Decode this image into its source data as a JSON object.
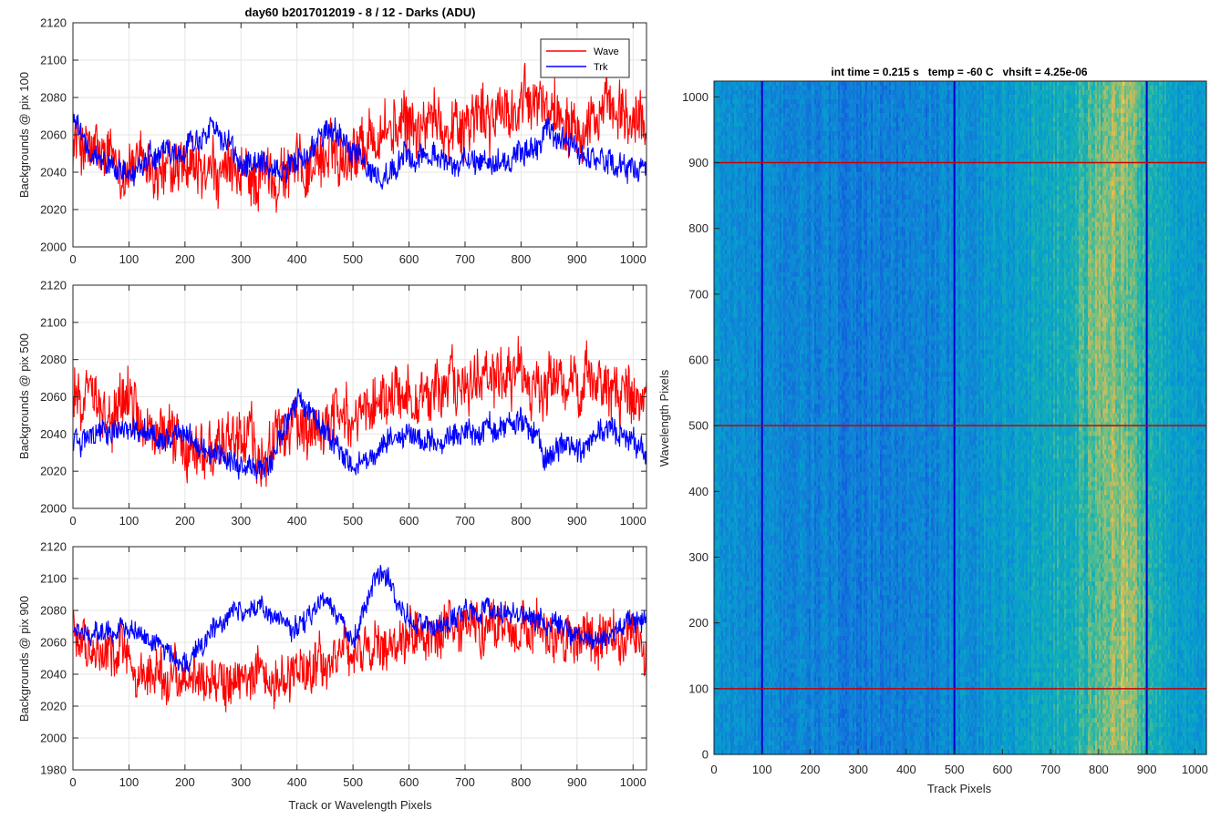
{
  "figure": {
    "title": "day60 b2017012019 - 8 / 12 - Darks (ADU)",
    "colors": {
      "wave": "#ff0000",
      "trk": "#0000ff",
      "grid": "#e6e6e6",
      "axis": "#262626"
    }
  },
  "chart_data": [
    {
      "type": "line",
      "title": "day60 b2017012019 - 8 / 12 - Darks (ADU)",
      "xlabel": "",
      "ylabel": "Backgrounds @ pix 100",
      "xlim": [
        0,
        1024
      ],
      "ylim": [
        2000,
        2120
      ],
      "xticks": [
        "0",
        "100",
        "200",
        "300",
        "400",
        "500",
        "600",
        "700",
        "800",
        "900",
        "1000"
      ],
      "yticks": [
        "2000",
        "2020",
        "2040",
        "2060",
        "2080",
        "2100",
        "2120"
      ],
      "grid": true,
      "legend": {
        "position": "top-right",
        "entries": [
          "Wave",
          "Trk"
        ]
      },
      "x": [
        0,
        50,
        100,
        150,
        200,
        250,
        300,
        350,
        400,
        450,
        500,
        550,
        600,
        650,
        700,
        750,
        800,
        850,
        900,
        950,
        1000,
        1024
      ],
      "series": [
        {
          "name": "Wave",
          "color": "#ff0000",
          "values": [
            2058,
            2046,
            2044,
            2040,
            2039,
            2037,
            2035,
            2038,
            2042,
            2048,
            2055,
            2062,
            2064,
            2066,
            2068,
            2070,
            2074,
            2076,
            2072,
            2070,
            2066,
            2062
          ]
        },
        {
          "name": "Trk",
          "color": "#0000ff",
          "values": [
            2070,
            2044,
            2040,
            2050,
            2052,
            2064,
            2044,
            2040,
            2042,
            2065,
            2052,
            2032,
            2050,
            2046,
            2046,
            2044,
            2048,
            2060,
            2052,
            2046,
            2042,
            2040
          ]
        }
      ]
    },
    {
      "type": "line",
      "xlabel": "",
      "ylabel": "Backgrounds @ pix 500",
      "xlim": [
        0,
        1024
      ],
      "ylim": [
        2000,
        2120
      ],
      "xticks": [
        "0",
        "100",
        "200",
        "300",
        "400",
        "500",
        "600",
        "700",
        "800",
        "900",
        "1000"
      ],
      "yticks": [
        "2000",
        "2020",
        "2040",
        "2060",
        "2080",
        "2100",
        "2120"
      ],
      "grid": true,
      "x": [
        0,
        50,
        100,
        150,
        200,
        250,
        300,
        350,
        400,
        450,
        500,
        550,
        600,
        650,
        700,
        750,
        800,
        850,
        900,
        950,
        1000,
        1024
      ],
      "series": [
        {
          "name": "Wave",
          "color": "#ff0000",
          "values": [
            2060,
            2058,
            2052,
            2046,
            2040,
            2036,
            2034,
            2038,
            2042,
            2048,
            2052,
            2058,
            2062,
            2066,
            2068,
            2070,
            2072,
            2070,
            2066,
            2062,
            2056,
            2058
          ]
        },
        {
          "name": "Trk",
          "color": "#0000ff",
          "values": [
            2038,
            2040,
            2048,
            2034,
            2040,
            2030,
            2024,
            2026,
            2058,
            2040,
            2022,
            2034,
            2040,
            2034,
            2044,
            2042,
            2048,
            2026,
            2034,
            2042,
            2034,
            2030
          ]
        }
      ]
    },
    {
      "type": "line",
      "xlabel": "Track or Wavelength Pixels",
      "ylabel": "Backgrounds @ pix 900",
      "xlim": [
        0,
        1024
      ],
      "ylim": [
        1980,
        2120
      ],
      "xticks": [
        "0",
        "100",
        "200",
        "300",
        "400",
        "500",
        "600",
        "700",
        "800",
        "900",
        "1000"
      ],
      "yticks": [
        "1980",
        "2000",
        "2020",
        "2040",
        "2060",
        "2080",
        "2100",
        "2120"
      ],
      "grid": true,
      "x": [
        0,
        50,
        100,
        150,
        200,
        250,
        300,
        350,
        400,
        450,
        500,
        550,
        600,
        650,
        700,
        750,
        800,
        850,
        900,
        950,
        1000,
        1024
      ],
      "series": [
        {
          "name": "Wave",
          "color": "#ff0000",
          "values": [
            2064,
            2052,
            2045,
            2040,
            2036,
            2038,
            2034,
            2036,
            2040,
            2046,
            2052,
            2058,
            2062,
            2066,
            2068,
            2070,
            2068,
            2066,
            2062,
            2058,
            2060,
            2062
          ]
        },
        {
          "name": "Trk",
          "color": "#0000ff",
          "values": [
            2066,
            2068,
            2070,
            2058,
            2044,
            2068,
            2082,
            2078,
            2070,
            2090,
            2062,
            2106,
            2074,
            2072,
            2076,
            2080,
            2078,
            2072,
            2064,
            2062,
            2074,
            2078
          ]
        }
      ]
    },
    {
      "type": "heatmap",
      "title": "int time = 0.215 s   temp = -60 C   vhsift = 4.25e-06",
      "xlabel": "Track Pixels",
      "ylabel": "Wavelength Pixels",
      "xlim": [
        0,
        1024
      ],
      "ylim": [
        0,
        1024
      ],
      "xticks": [
        "0",
        "100",
        "200",
        "300",
        "400",
        "500",
        "600",
        "700",
        "800",
        "900",
        "1000"
      ],
      "yticks": [
        "0",
        "100",
        "200",
        "300",
        "400",
        "500",
        "600",
        "700",
        "800",
        "900",
        "1000"
      ],
      "colormap": "parula",
      "column_profile": {
        "x": [
          0,
          50,
          100,
          150,
          200,
          250,
          300,
          350,
          400,
          450,
          500,
          550,
          600,
          650,
          700,
          750,
          800,
          850,
          900,
          950,
          1024
        ],
        "level": [
          0.42,
          0.38,
          0.35,
          0.34,
          0.33,
          0.31,
          0.3,
          0.3,
          0.31,
          0.32,
          0.36,
          0.42,
          0.46,
          0.5,
          0.55,
          0.6,
          0.66,
          0.7,
          0.62,
          0.5,
          0.46
        ]
      },
      "vertical_markers": [
        100,
        500,
        900
      ],
      "horizontal_markers": [
        100,
        500,
        900
      ],
      "vertical_marker_color": "#0000cc",
      "horizontal_marker_color": "#cc0000"
    }
  ]
}
